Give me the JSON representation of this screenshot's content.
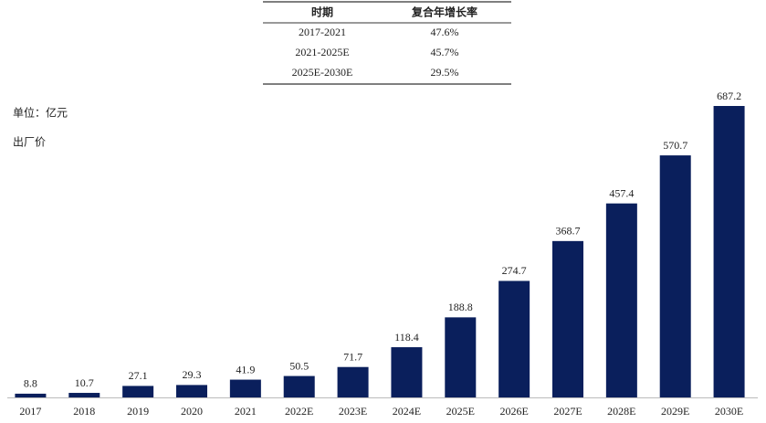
{
  "table": {
    "header": [
      "时期",
      "复合年增长率"
    ],
    "rows": [
      [
        "2017-2021",
        "47.6%"
      ],
      [
        "2021-2025E",
        "45.7%"
      ],
      [
        "2025E-2030E",
        "29.5%"
      ]
    ]
  },
  "chart_data": {
    "type": "bar",
    "unit_label": "单位：亿元",
    "note": "出厂价",
    "categories": [
      "2017",
      "2018",
      "2019",
      "2020",
      "2021",
      "2022E",
      "2023E",
      "2024E",
      "2025E",
      "2026E",
      "2027E",
      "2028E",
      "2029E",
      "2030E"
    ],
    "values": [
      8.8,
      10.7,
      27.1,
      29.3,
      41.9,
      50.5,
      71.7,
      118.4,
      188.8,
      274.7,
      368.7,
      457.4,
      570.7,
      687.2
    ],
    "color": "#0a1f5c"
  }
}
